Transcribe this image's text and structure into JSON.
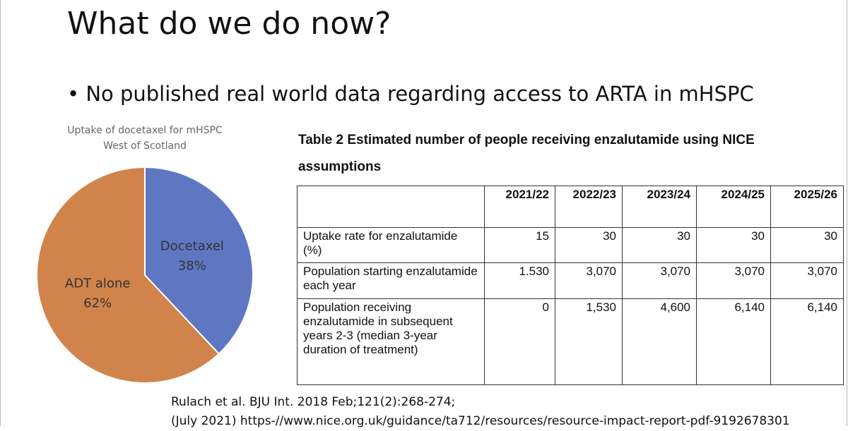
{
  "slide": {
    "title": "What do we do now?",
    "bullets": [
      "No published real world data regarding access to ARTA in mHSPC"
    ],
    "references": [
      "Rulach et al. BJU Int. 2018 Feb;121(2):268-274;",
      "(July 2021) https-//www.nice.org.uk/guidance/ta712/resources/resource-impact-report-pdf-9192678301"
    ]
  },
  "chart_data": {
    "type": "pie",
    "title": "Uptake of docetaxel  for mHSPC",
    "subtitle": "West of Scotland",
    "categories": [
      "Docetaxel",
      "ADT alone"
    ],
    "values": [
      38,
      62
    ],
    "value_labels": [
      "38%",
      "62%"
    ],
    "colors": [
      "#5f77c2",
      "#d0844b"
    ]
  },
  "table": {
    "caption": "Table 2 Estimated number of people receiving enzalutamide using NICE assumptions",
    "header": [
      "2021/22",
      "2022/23",
      "2023/24",
      "2024/25",
      "2025/26"
    ],
    "rows": [
      [
        "Uptake rate for enzalutamide (%)",
        "15",
        "30",
        "30",
        "30",
        "30"
      ],
      [
        "Population starting enzalutamide each year",
        "1.530",
        "3,070",
        "3,070",
        "3,070",
        "3,070"
      ],
      [
        "Population receiving enzalutamide in subsequent years 2-3 (median 3-year duration of treatment)",
        "0",
        "1,530",
        "4,600",
        "6,140",
        "6,140"
      ]
    ]
  }
}
